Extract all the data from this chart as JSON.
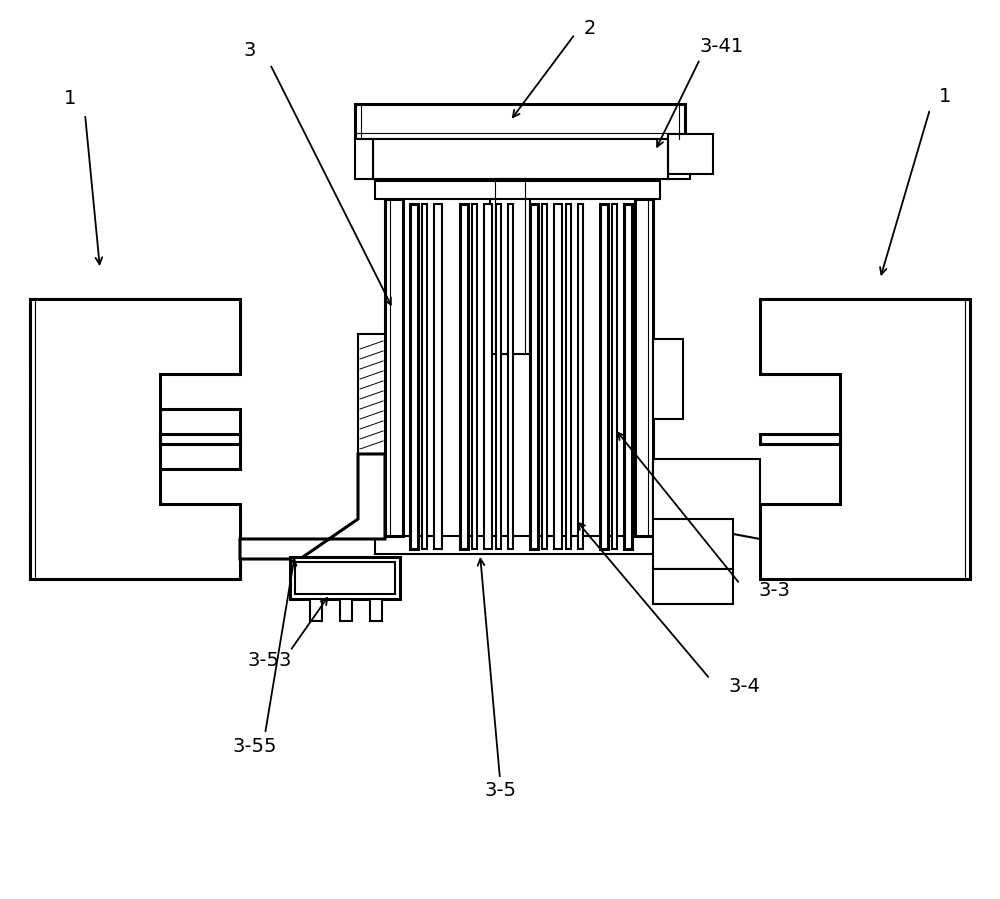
{
  "bg_color": "#ffffff",
  "lc": "#000000",
  "lw": 1.5,
  "lw2": 2.2,
  "fig_width": 10.0,
  "fig_height": 8.99,
  "dpi": 100
}
